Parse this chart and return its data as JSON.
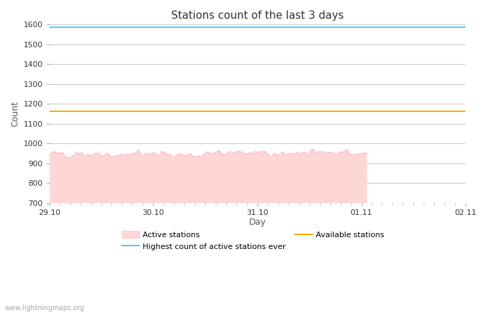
{
  "title": "Stations count of the last 3 days",
  "xlabel": "Day",
  "ylabel": "Count",
  "ylim": [
    700,
    1600
  ],
  "yticks": [
    700,
    800,
    900,
    1000,
    1100,
    1200,
    1300,
    1400,
    1500,
    1600
  ],
  "xtick_labels": [
    "29.10",
    "30.10",
    "31.10",
    "01.11",
    "02.11"
  ],
  "xtick_positions": [
    0,
    1,
    2,
    3,
    4
  ],
  "active_stations_base": 942,
  "active_stations_noise_scale": 6,
  "highest_count_ever": 1586,
  "available_stations": 1162,
  "active_fill_color": "#ffd6d6",
  "active_line_color": "#ffaaaa",
  "highest_line_color": "#55ccee",
  "available_line_color": "#ffaa00",
  "background_color": "#ffffff",
  "grid_color": "#cccccc",
  "watermark": "www.lightningmaps.org",
  "n_points": 600,
  "x_start": 0.0,
  "x_end": 4.0,
  "data_end_x": 3.05,
  "title_fontsize": 11,
  "axis_label_fontsize": 9,
  "tick_fontsize": 8,
  "legend_fontsize": 8
}
